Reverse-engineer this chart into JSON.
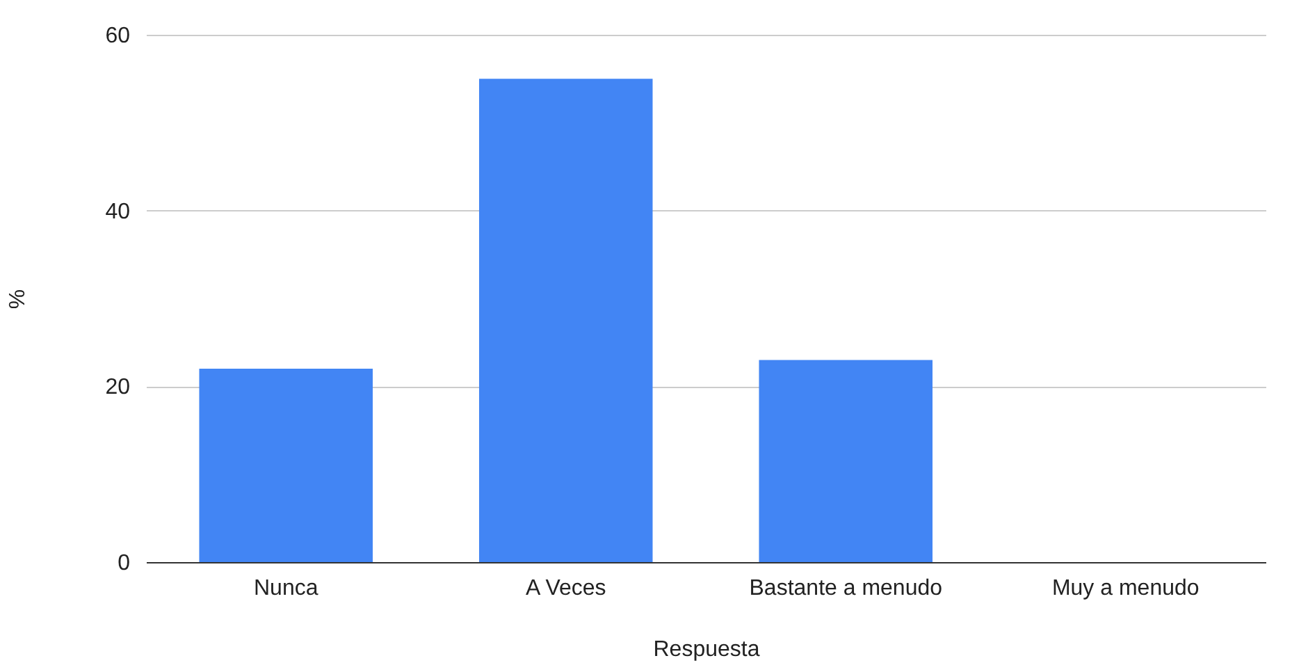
{
  "chart_data": {
    "type": "bar",
    "xlabel": "Respuesta",
    "ylabel": "%",
    "categories": [
      "Nunca",
      "A Veces",
      "Bastante a menudo",
      "Muy a menudo"
    ],
    "values": [
      22,
      55,
      23,
      0
    ],
    "color": "#4285f4",
    "ylim": [
      0,
      60
    ],
    "yticks": [
      0,
      20,
      40,
      60
    ],
    "grid": "y"
  }
}
